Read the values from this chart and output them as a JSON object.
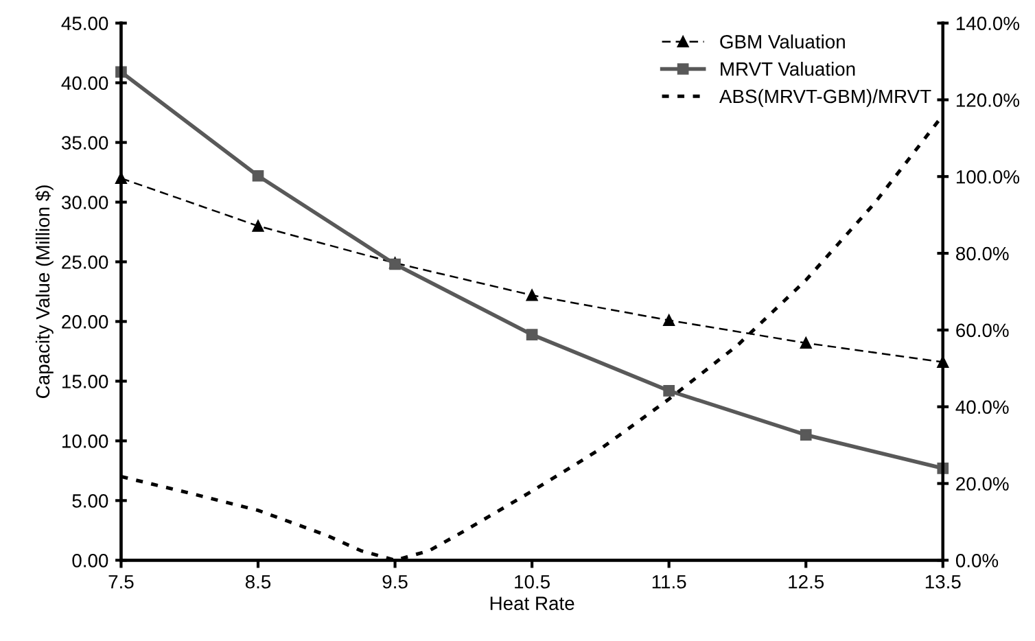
{
  "chart_data": {
    "type": "line",
    "xlabel": "Heat Rate",
    "ylabel": "Capacity Value (Million $)",
    "x": [
      7.5,
      8.5,
      9.5,
      10.5,
      11.5,
      12.5,
      13.5
    ],
    "xlim": [
      7.5,
      13.5
    ],
    "xticks": [
      7.5,
      8.5,
      9.5,
      10.5,
      11.5,
      12.5,
      13.5
    ],
    "ylim": [
      0,
      45
    ],
    "yticks": [
      {
        "value": 0,
        "label": "0.00"
      },
      {
        "value": 5,
        "label": "5.00"
      },
      {
        "value": 10,
        "label": "10.00"
      },
      {
        "value": 15,
        "label": "15.00"
      },
      {
        "value": 20,
        "label": "20.00"
      },
      {
        "value": 25,
        "label": "25.00"
      },
      {
        "value": 30,
        "label": "30.00"
      },
      {
        "value": 35,
        "label": "35.00"
      },
      {
        "value": 40,
        "label": "40.00"
      },
      {
        "value": 45,
        "label": "45.00"
      }
    ],
    "y2lim": [
      0,
      140
    ],
    "y2ticks": [
      {
        "value": 0,
        "label": "0.0%"
      },
      {
        "value": 20,
        "label": "20.0%"
      },
      {
        "value": 40,
        "label": "40.0%"
      },
      {
        "value": 60,
        "label": "60.0%"
      },
      {
        "value": 80,
        "label": "80.0%"
      },
      {
        "value": 100,
        "label": "100.0%"
      },
      {
        "value": 120,
        "label": "120.0%"
      },
      {
        "value": 140,
        "label": "140.0%"
      }
    ],
    "grid": false,
    "legend": "top right",
    "series": [
      {
        "name": "GBM Valuation",
        "color": "#000000",
        "marker": "triangle",
        "line_style": "dashed",
        "values": [
          32.0,
          28.0,
          24.9,
          22.2,
          20.1,
          18.2,
          16.6
        ]
      },
      {
        "name": "MRVT Valuation",
        "color": "#595959",
        "marker": "square",
        "line_style": "solid",
        "values": [
          40.9,
          32.2,
          24.8,
          18.9,
          14.2,
          10.5,
          7.7
        ]
      },
      {
        "name": "ABS(MRVT-GBM)/MRVT",
        "color": "#000000",
        "marker": "none",
        "line_style": "dotted",
        "axis": "y2",
        "x": [
          7.5,
          8.0,
          8.5,
          9.0,
          9.25,
          9.5,
          9.75,
          10.0,
          10.5,
          11.0,
          11.5,
          12.0,
          12.5,
          13.0,
          13.5
        ],
        "values": [
          21.8,
          17.5,
          13.0,
          6.5,
          2.5,
          0.0,
          2.5,
          7.5,
          18.0,
          29.0,
          42.0,
          56.0,
          73.0,
          93.0,
          116.0
        ]
      }
    ]
  }
}
